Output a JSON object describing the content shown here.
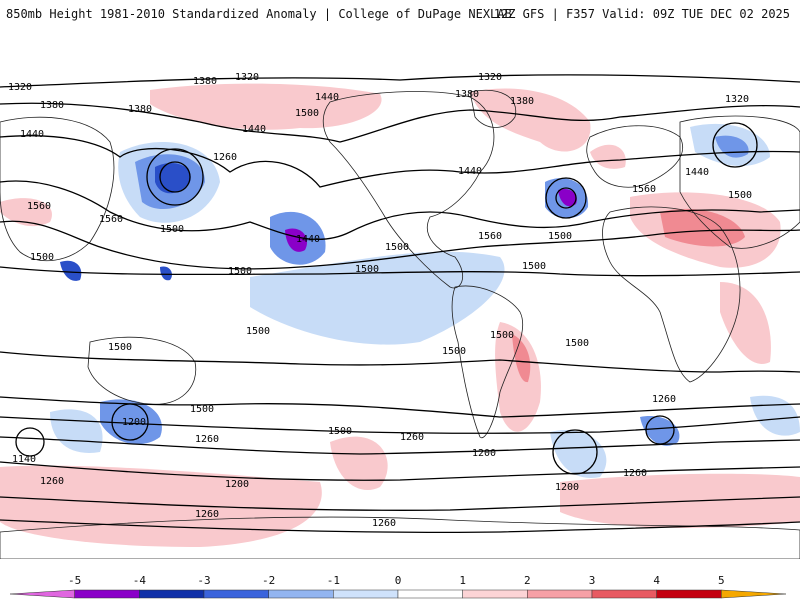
{
  "header": {
    "title": "850mb Height 1981-2010 Standardized Anomaly | College of DuPage NEXLAB",
    "run_info": "12Z GFS | F357 Valid: 09Z TUE DEC 02 2025"
  },
  "colorbar": {
    "ticks": [
      "-5",
      "-4",
      "-3",
      "-2",
      "-1",
      "0",
      "1",
      "2",
      "3",
      "4",
      "5"
    ],
    "colors": [
      "#e066e0",
      "#8a00c8",
      "#1030a8",
      "#3b64dc",
      "#93b5f0",
      "#cfe2fb",
      "#ffffff",
      "#fcd4d6",
      "#f6a0a6",
      "#e85a62",
      "#c40010",
      "#f5a800"
    ]
  },
  "map": {
    "contour_labels": [
      "1320",
      "1380",
      "1440",
      "1500",
      "1560",
      "1260",
      "1200",
      "1140"
    ],
    "anomaly_colors": {
      "positive_weak": "#f9c9cd",
      "positive_mod": "#f08a92",
      "negative_weak": "#c7dcf7",
      "negative_mod": "#6f96e8",
      "negative_strong": "#2a4fc8",
      "negative_extreme": "#8a00c8"
    }
  }
}
